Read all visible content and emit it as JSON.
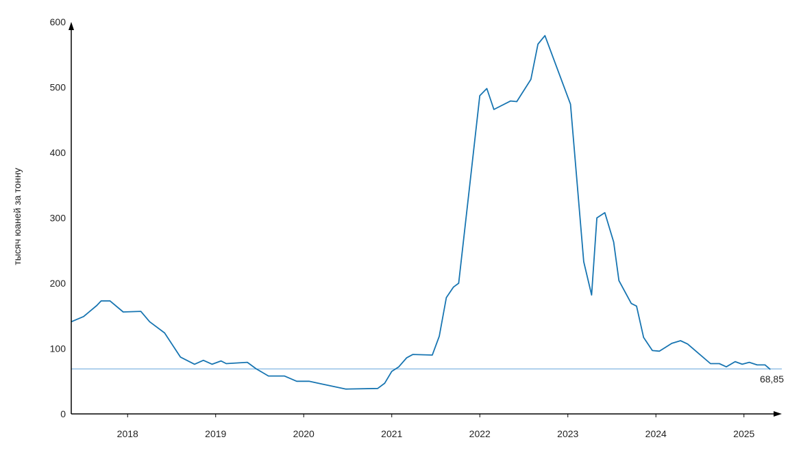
{
  "chart_data": {
    "type": "line",
    "title": "",
    "xlabel": "",
    "ylabel": "тысяч юаней за тонну",
    "ylim": [
      0,
      600
    ],
    "yticks": [
      0,
      100,
      200,
      300,
      400,
      500,
      600
    ],
    "xlim": [
      2017.36,
      2025.36
    ],
    "xticks": [
      {
        "label": "2018",
        "value": 2018.0
      },
      {
        "label": "2019",
        "value": 2019.0
      },
      {
        "label": "2020",
        "value": 2020.0
      },
      {
        "label": "2021",
        "value": 2021.0
      },
      {
        "label": "2022",
        "value": 2022.0
      },
      {
        "label": "2023",
        "value": 2023.0
      },
      {
        "label": "2024",
        "value": 2024.0
      },
      {
        "label": "2025",
        "value": 2025.0
      }
    ],
    "grid": false,
    "legend": "none",
    "reference_line": {
      "value": 68.85,
      "label": "68,85",
      "color": "#7fb4e0"
    },
    "series": [
      {
        "color": "#1674b1",
        "points": [
          [
            2017.36,
            141
          ],
          [
            2017.5,
            149
          ],
          [
            2017.65,
            166
          ],
          [
            2017.7,
            173
          ],
          [
            2017.8,
            173
          ],
          [
            2017.95,
            156
          ],
          [
            2018.15,
            157
          ],
          [
            2018.25,
            141
          ],
          [
            2018.42,
            124
          ],
          [
            2018.6,
            87
          ],
          [
            2018.76,
            76
          ],
          [
            2018.86,
            82
          ],
          [
            2018.96,
            76
          ],
          [
            2019.06,
            81
          ],
          [
            2019.12,
            77
          ],
          [
            2019.36,
            79
          ],
          [
            2019.46,
            69
          ],
          [
            2019.6,
            58
          ],
          [
            2019.78,
            58
          ],
          [
            2019.92,
            50
          ],
          [
            2020.06,
            50
          ],
          [
            2020.2,
            46
          ],
          [
            2020.48,
            38
          ],
          [
            2020.84,
            39
          ],
          [
            2020.92,
            47
          ],
          [
            2021.0,
            65
          ],
          [
            2021.08,
            72
          ],
          [
            2021.17,
            86
          ],
          [
            2021.24,
            91
          ],
          [
            2021.46,
            90
          ],
          [
            2021.54,
            119
          ],
          [
            2021.62,
            178
          ],
          [
            2021.7,
            194
          ],
          [
            2021.76,
            200
          ],
          [
            2021.88,
            343
          ],
          [
            2022.0,
            487
          ],
          [
            2022.08,
            498
          ],
          [
            2022.16,
            466
          ],
          [
            2022.35,
            479
          ],
          [
            2022.42,
            478
          ],
          [
            2022.58,
            512
          ],
          [
            2022.66,
            566
          ],
          [
            2022.74,
            579
          ],
          [
            2023.03,
            474
          ],
          [
            2023.18,
            233
          ],
          [
            2023.27,
            182
          ],
          [
            2023.33,
            300
          ],
          [
            2023.42,
            308
          ],
          [
            2023.52,
            263
          ],
          [
            2023.58,
            204
          ],
          [
            2023.72,
            169
          ],
          [
            2023.78,
            165
          ],
          [
            2023.86,
            117
          ],
          [
            2023.96,
            97
          ],
          [
            2024.04,
            96
          ],
          [
            2024.18,
            108
          ],
          [
            2024.28,
            112
          ],
          [
            2024.36,
            107
          ],
          [
            2024.62,
            77
          ],
          [
            2024.72,
            77
          ],
          [
            2024.8,
            72
          ],
          [
            2024.9,
            80
          ],
          [
            2024.98,
            76
          ],
          [
            2025.06,
            79
          ],
          [
            2025.15,
            75
          ],
          [
            2025.24,
            75
          ],
          [
            2025.3,
            68
          ]
        ]
      }
    ]
  }
}
